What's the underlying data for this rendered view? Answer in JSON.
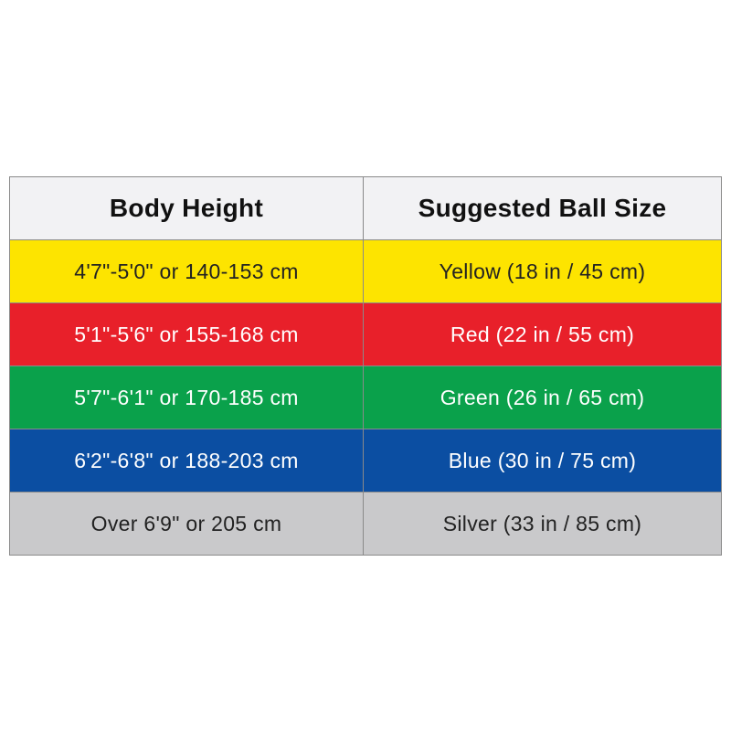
{
  "table": {
    "header": [
      "Body Height",
      "Suggested Ball Size"
    ],
    "rows": [
      [
        "4'7\"-5'0\" or 140-153 cm",
        "Yellow (18 in / 45 cm)"
      ],
      [
        "5'1\"-5'6\" or 155-168 cm",
        "Red (22 in / 55 cm)"
      ],
      [
        "5'7\"-6'1\" or 170-185 cm",
        "Green (26 in / 65 cm)"
      ],
      [
        "6'2\"-6'8\" or 188-203 cm",
        "Blue (30 in / 75 cm)"
      ],
      [
        "Over 6'9\" or 205 cm",
        "Silver (33 in / 85 cm)"
      ]
    ]
  }
}
